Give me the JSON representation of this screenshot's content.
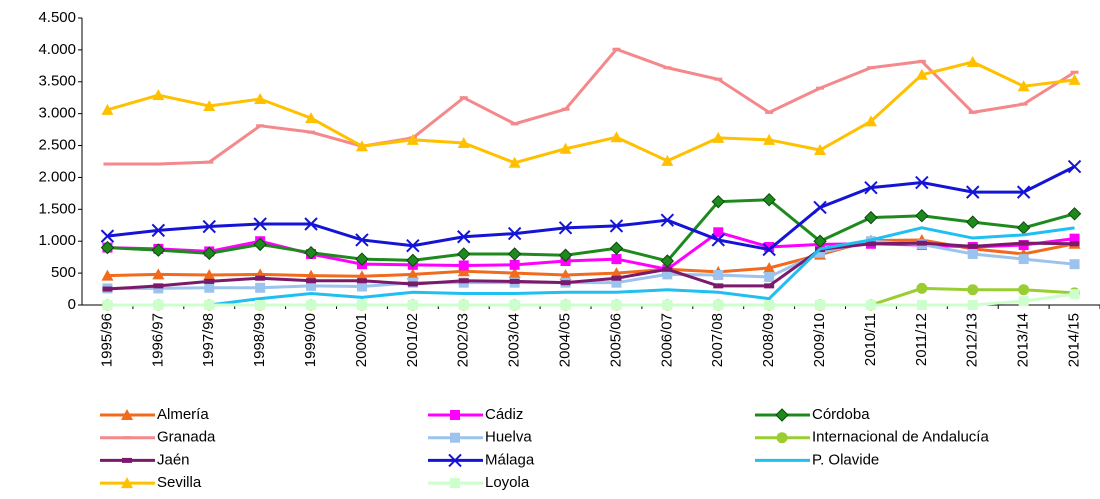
{
  "chart_data": {
    "type": "line",
    "categories": [
      "1995/96",
      "1996/97",
      "1997/98",
      "1998/99",
      "1999/00",
      "2000/01",
      "2001/02",
      "2002/03",
      "2003/04",
      "2004/05",
      "2005/06",
      "2006/07",
      "2007/08",
      "2008/09",
      "2009/10",
      "2010/11",
      "2011/12",
      "2012/13",
      "2013/14",
      "2014/15"
    ],
    "ylim": [
      0,
      4500
    ],
    "yticks": [
      0,
      500,
      {
        "value": 1000,
        "label": "1.000"
      },
      {
        "value": 1500,
        "label": "1.500"
      },
      {
        "value": 2000,
        "label": "2.000"
      },
      {
        "value": 2500,
        "label": "2.500"
      },
      {
        "value": 3000,
        "label": "3.000"
      },
      {
        "value": 3500,
        "label": "3.500"
      },
      {
        "value": 4000,
        "label": "4.000"
      },
      {
        "value": 4500,
        "label": "4.500"
      }
    ],
    "legend": "bottom",
    "series": [
      {
        "name": "Almería",
        "color": "#f26b1d",
        "marker": "triangle",
        "values": [
          460,
          480,
          470,
          480,
          460,
          450,
          480,
          530,
          500,
          470,
          500,
          560,
          520,
          580,
          790,
          1010,
          1020,
          880,
          800,
          960
        ]
      },
      {
        "name": "Cádiz",
        "color": "#ff00ff",
        "marker": "square",
        "values": [
          900,
          880,
          840,
          1000,
          800,
          640,
          630,
          620,
          630,
          690,
          720,
          560,
          1140,
          910,
          950,
          960,
          940,
          910,
          940,
          1040
        ]
      },
      {
        "name": "Córdoba",
        "color": "#1e8a1e",
        "marker": "diamond",
        "values": [
          900,
          860,
          810,
          950,
          820,
          720,
          700,
          800,
          800,
          780,
          890,
          690,
          1620,
          1650,
          1000,
          1370,
          1400,
          1300,
          1210,
          1430
        ]
      },
      {
        "name": "Granada",
        "color": "#f4888a",
        "marker": "dash",
        "values": [
          2210,
          2210,
          2240,
          2810,
          2710,
          2490,
          2620,
          3250,
          2840,
          3070,
          4010,
          3720,
          3540,
          3020,
          3400,
          3720,
          3820,
          3020,
          3150,
          3650
        ]
      },
      {
        "name": "Huelva",
        "color": "#9cc3ee",
        "marker": "square",
        "values": [
          260,
          260,
          270,
          270,
          300,
          290,
          350,
          350,
          350,
          350,
          350,
          480,
          470,
          440,
          820,
          1000,
          950,
          800,
          720,
          640
        ]
      },
      {
        "name": "Internacional de Andalucía",
        "color": "#9acd32",
        "marker": "circle",
        "values": [
          0,
          0,
          0,
          0,
          0,
          0,
          0,
          0,
          0,
          0,
          0,
          0,
          0,
          0,
          0,
          0,
          260,
          240,
          240,
          190
        ]
      },
      {
        "name": "Jaén",
        "color": "#7b1a6b",
        "marker": "bar",
        "values": [
          250,
          300,
          370,
          420,
          380,
          380,
          330,
          380,
          370,
          350,
          420,
          560,
          300,
          300,
          870,
          960,
          970,
          920,
          970,
          960
        ]
      },
      {
        "name": "Málaga",
        "color": "#1414d6",
        "marker": "x",
        "values": [
          1080,
          1170,
          1230,
          1270,
          1270,
          1020,
          930,
          1070,
          1120,
          1210,
          1240,
          1330,
          1020,
          870,
          1530,
          1840,
          1920,
          1770,
          1770,
          2170
        ]
      },
      {
        "name": "P. Olavide",
        "color": "#1fbff0",
        "marker": "none",
        "values": [
          0,
          0,
          0,
          100,
          180,
          120,
          200,
          180,
          180,
          200,
          200,
          240,
          200,
          100,
          880,
          1020,
          1210,
          1050,
          1100,
          1210
        ]
      },
      {
        "name": "Sevilla",
        "color": "#ffc000",
        "marker": "triangle",
        "values": [
          3060,
          3290,
          3120,
          3230,
          2930,
          2490,
          2590,
          2540,
          2230,
          2450,
          2630,
          2260,
          2620,
          2590,
          2430,
          2880,
          3610,
          3810,
          3430,
          3530
        ]
      },
      {
        "name": "Loyola",
        "color": "#ccffcc",
        "marker": "square",
        "values": [
          0,
          0,
          0,
          0,
          0,
          0,
          0,
          0,
          0,
          0,
          0,
          0,
          0,
          0,
          0,
          0,
          0,
          0,
          60,
          170
        ]
      }
    ]
  }
}
